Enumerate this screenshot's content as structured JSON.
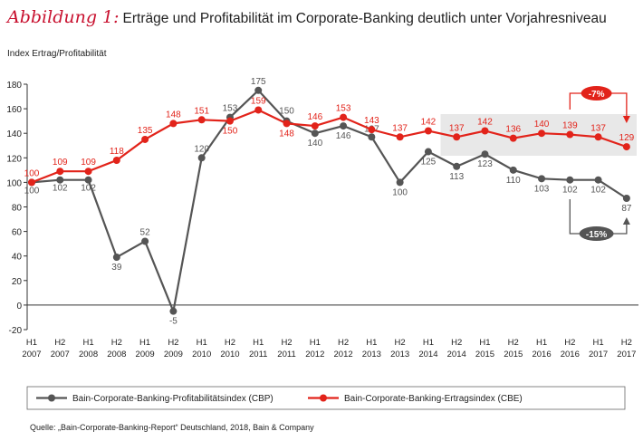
{
  "title": {
    "figure_label": "Abbildung 1:",
    "text": "Erträge und Profitabilität im Corporate-Banking deutlich unter Vorjahresniveau"
  },
  "source": "Quelle: „Bain-Corporate-Banking-Report“ Deutschland, 2018, Bain & Company",
  "chart_data": {
    "type": "line",
    "ylabel": "Index Ertrag/Profitabilität",
    "ylim": [
      -20,
      180
    ],
    "yticks": [
      -20,
      0,
      20,
      40,
      60,
      80,
      100,
      120,
      140,
      160,
      180
    ],
    "grid": false,
    "legend_placement": "bottom",
    "categories": [
      [
        "H1",
        "2007"
      ],
      [
        "H2",
        "2007"
      ],
      [
        "H1",
        "2008"
      ],
      [
        "H2",
        "2008"
      ],
      [
        "H1",
        "2009"
      ],
      [
        "H2",
        "2009"
      ],
      [
        "H1",
        "2010"
      ],
      [
        "H2",
        "2010"
      ],
      [
        "H1",
        "2011"
      ],
      [
        "H2",
        "2011"
      ],
      [
        "H1",
        "2012"
      ],
      [
        "H2",
        "2012"
      ],
      [
        "H1",
        "2013"
      ],
      [
        "H2",
        "2013"
      ],
      [
        "H1",
        "2014"
      ],
      [
        "H2",
        "2014"
      ],
      [
        "H1",
        "2015"
      ],
      [
        "H2",
        "2015"
      ],
      [
        "H1",
        "2016"
      ],
      [
        "H2",
        "2016"
      ],
      [
        "H1",
        "2017"
      ],
      [
        "H2",
        "2017"
      ]
    ],
    "series": [
      {
        "name": "Bain-Corporate-Banking-Profitabilitätsindex (CBP)",
        "color": "#555555",
        "values": [
          100,
          102,
          102,
          39,
          52,
          -5,
          120,
          153,
          175,
          150,
          140,
          146,
          137,
          100,
          125,
          113,
          123,
          110,
          103,
          102,
          102,
          87
        ]
      },
      {
        "name": "Bain-Corporate-Banking-Ertragsindex (CBE)",
        "color": "#e2231a",
        "values": [
          100,
          109,
          109,
          118,
          135,
          148,
          151,
          150,
          159,
          148,
          146,
          153,
          143,
          137,
          142,
          137,
          142,
          136,
          140,
          139,
          137,
          129
        ]
      }
    ],
    "annotations": [
      {
        "text": "-7%",
        "color": "#e2231a",
        "from": "H2 2016",
        "to": "H2 2017"
      },
      {
        "text": "-15%",
        "color": "#555555",
        "from": "H2 2016",
        "to": "H2 2017"
      }
    ],
    "highlight_band_color": "#e8e8e8"
  }
}
